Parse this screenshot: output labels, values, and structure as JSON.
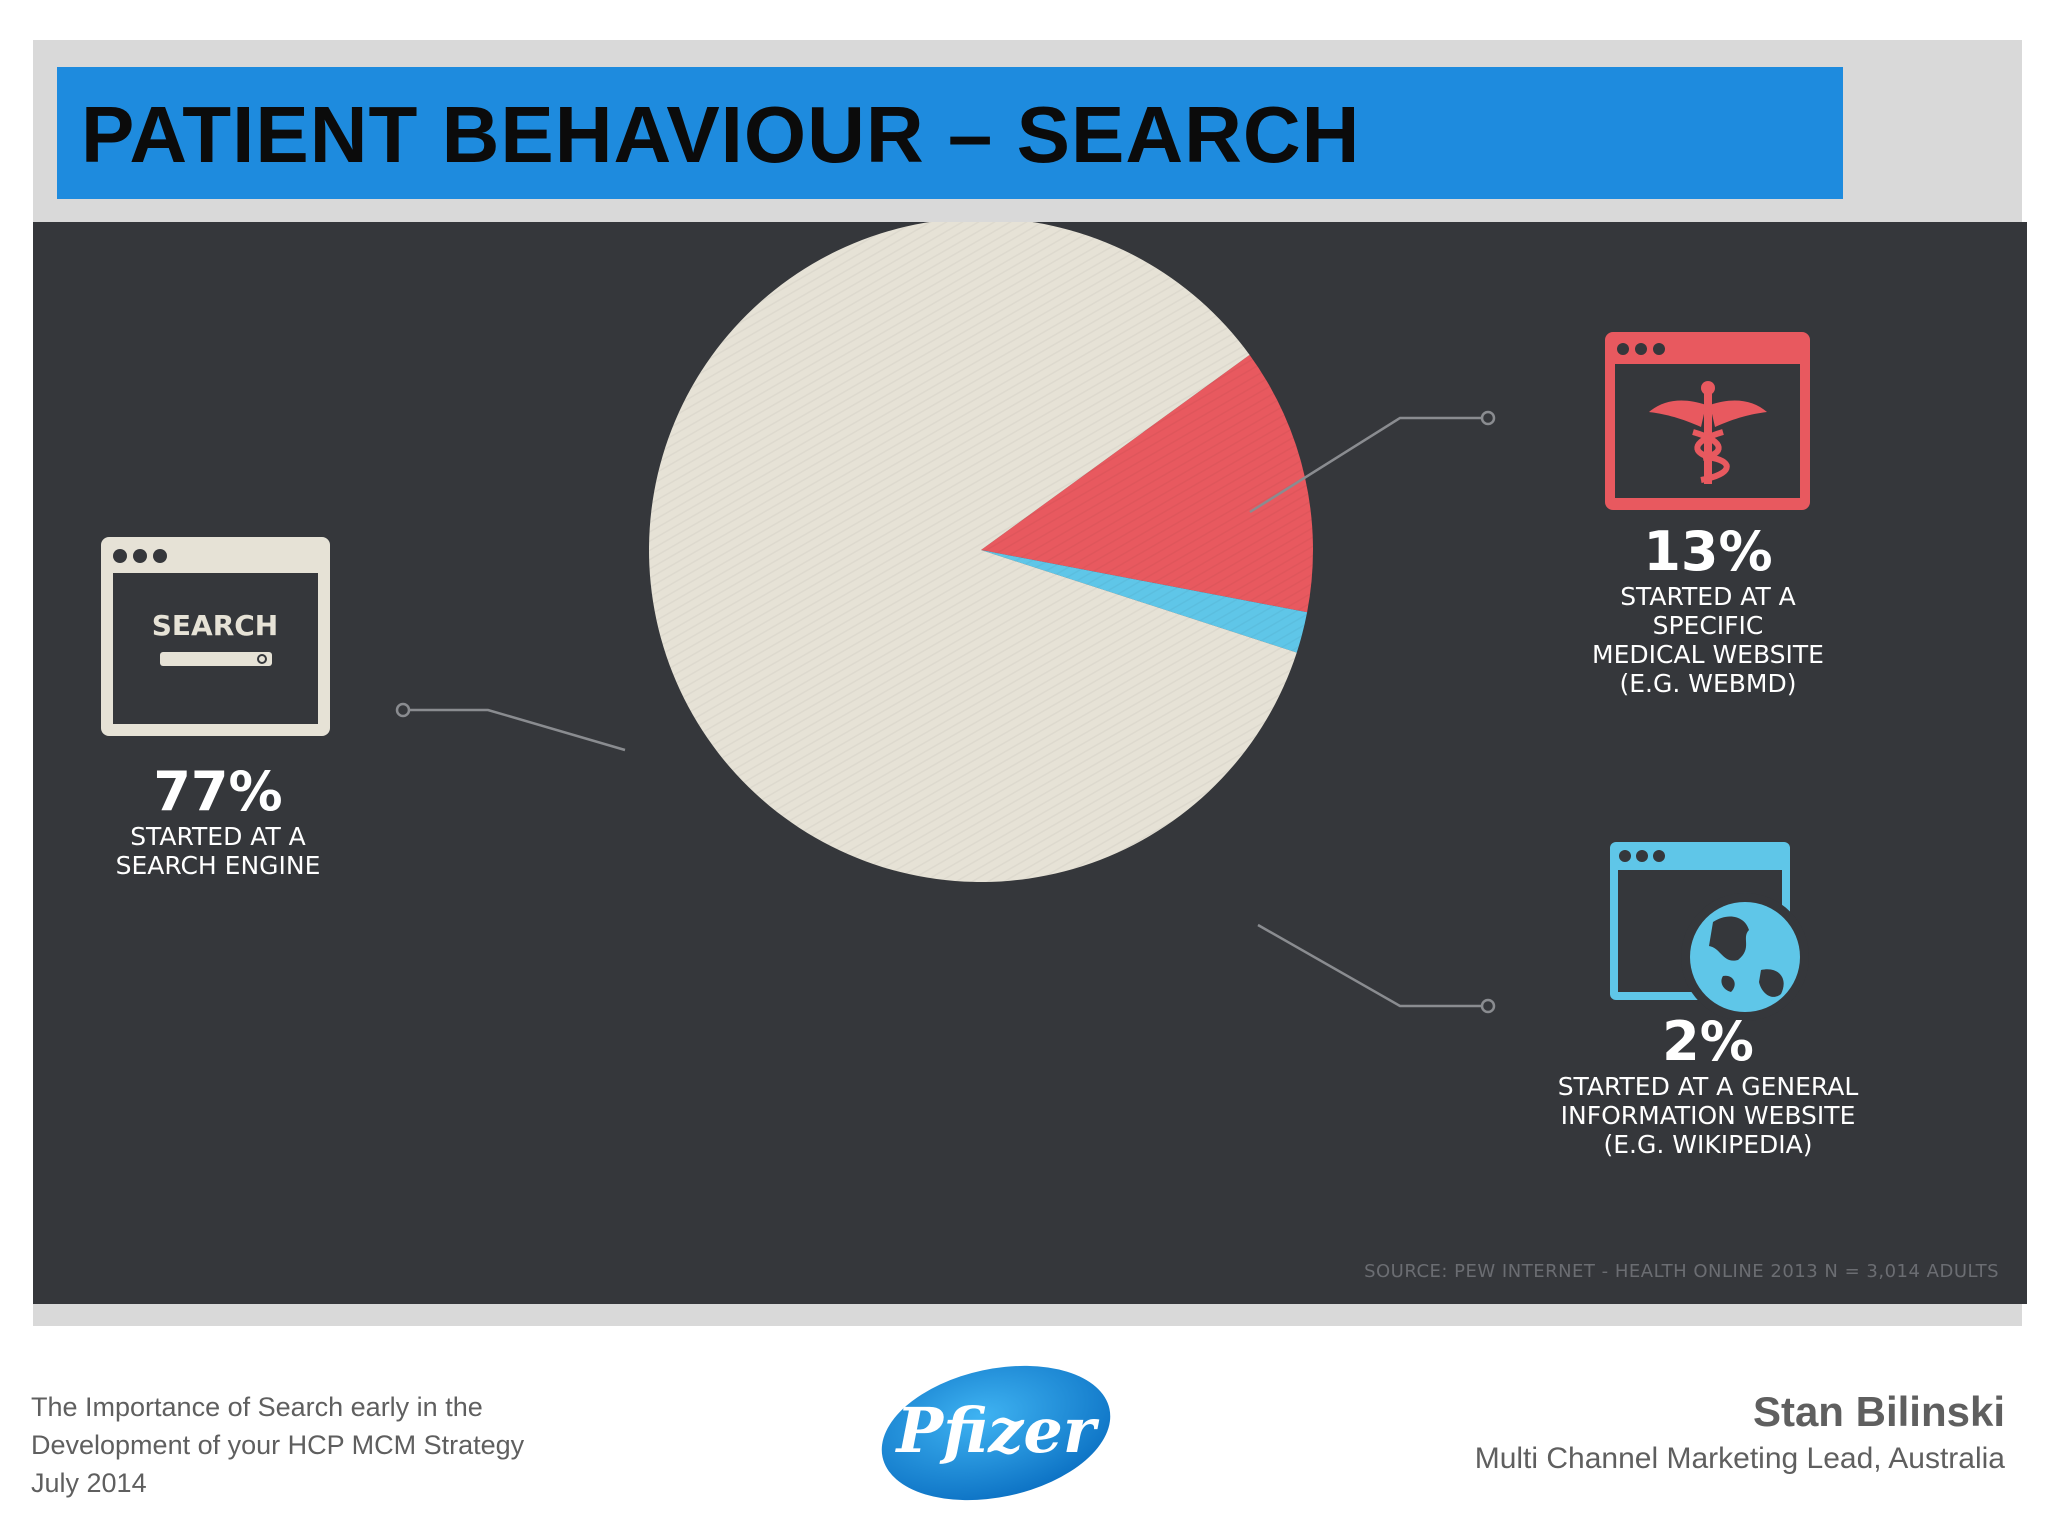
{
  "slide": {
    "title": "PATIENT BEHAVIOUR – SEARCH"
  },
  "chart_data": {
    "type": "pie",
    "categories": [
      "STARTED AT A SEARCH ENGINE",
      "STARTED AT A SPECIFIC MEDICAL WEBSITE (E.G. WEBMD)",
      "STARTED AT A GENERAL INFORMATION WEBSITE (E.G. WIKIPEDIA)"
    ],
    "values": [
      77,
      13,
      2
    ],
    "unit": "%",
    "colors": [
      "#e6e2d6",
      "#e8595f",
      "#5fc6e8"
    ],
    "source": "SOURCE: PEW INTERNET - HEALTH ONLINE 2013 N = 3,014 ADULTS"
  },
  "labels": {
    "search_engine": {
      "pct": "77%",
      "desc": "STARTED AT A\nSEARCH ENGINE",
      "icon": "search-browser-icon",
      "icon_text": "SEARCH"
    },
    "medical_site": {
      "pct": "13%",
      "desc": "STARTED AT A SPECIFIC\nMEDICAL WEBSITE\n(E.G. WEBMD)",
      "icon": "caduceus-browser-icon"
    },
    "general_site": {
      "pct": "2%",
      "desc": "STARTED AT A GENERAL\nINFORMATION WEBSITE\n(E.G. WIKIPEDIA)",
      "icon": "globe-browser-icon"
    }
  },
  "footer": {
    "left_line1": "The Importance of Search early in the",
    "left_line2": "Development of your HCP MCM Strategy",
    "left_line3": "July 2014",
    "logo_text": "Pfizer",
    "author_name": "Stan Bilinski",
    "author_role": "Multi Channel Marketing Lead, Australia"
  }
}
